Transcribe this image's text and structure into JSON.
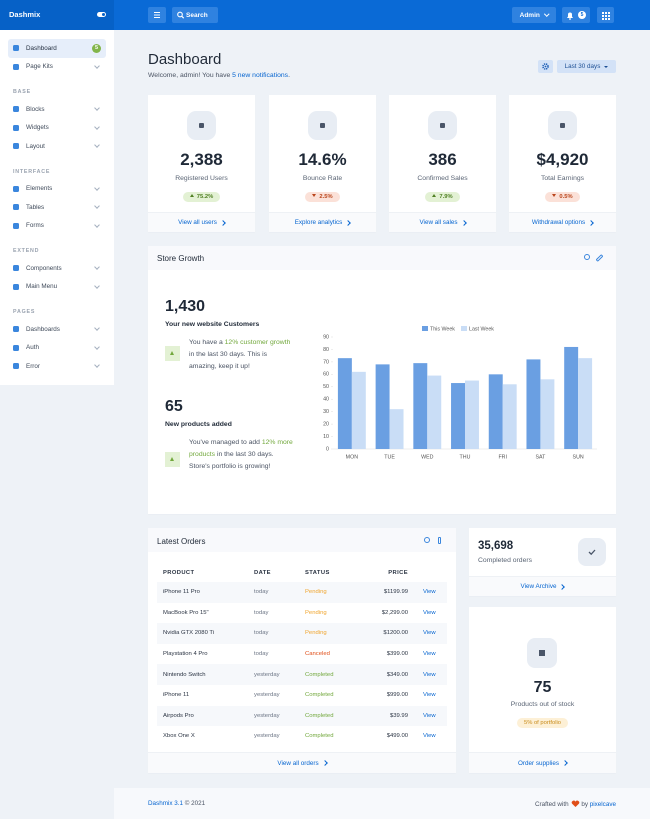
{
  "brand": "Dashmix",
  "header": {
    "search": "Search",
    "user": "Admin",
    "notifications": "5"
  },
  "sidebar": {
    "items": [
      {
        "label": "Dashboard",
        "badge": "5"
      },
      {
        "label": "Page Kits"
      }
    ],
    "sections": [
      {
        "title": "BASE",
        "items": [
          "Blocks",
          "Widgets",
          "Layout"
        ]
      },
      {
        "title": "INTERFACE",
        "items": [
          "Elements",
          "Tables",
          "Forms"
        ]
      },
      {
        "title": "EXTEND",
        "items": [
          "Components",
          "Main Menu"
        ]
      },
      {
        "title": "PAGES",
        "items": [
          "Dashboards",
          "Auth",
          "Error"
        ]
      }
    ]
  },
  "page": {
    "title": "Dashboard",
    "welcome": [
      "Welcome, admin! You have ",
      "5 new notifications",
      "."
    ],
    "range": "Last 30 days"
  },
  "stats": [
    {
      "value": "2,388",
      "label": "Registered Users",
      "change": "75.2%",
      "trend": "up",
      "link": "View all users"
    },
    {
      "value": "14.6%",
      "label": "Bounce Rate",
      "change": "2.5%",
      "trend": "down",
      "link": "Explore analytics"
    },
    {
      "value": "386",
      "label": "Confirmed Sales",
      "change": "7.9%",
      "trend": "up",
      "link": "View all sales"
    },
    {
      "value": "$4,920",
      "label": "Total Earnings",
      "change": "0.5%",
      "trend": "down",
      "link": "Withdrawal options"
    }
  ],
  "store_growth": {
    "title": "Store Growth",
    "highlights": [
      {
        "value": "1,430",
        "label": "Your new website Customers",
        "text": [
          "You have a ",
          "12% customer growth",
          " in the last 30 days. This is amazing, keep it up!"
        ]
      },
      {
        "value": "65",
        "label": "New products added",
        "text": [
          "You've managed to add ",
          "12% more products",
          " in the last 30 days. Store's portfolio is growing!"
        ]
      }
    ]
  },
  "chart_data": {
    "type": "bar",
    "categories": [
      "MON",
      "TUE",
      "WED",
      "THU",
      "FRI",
      "SAT",
      "SUN"
    ],
    "series": [
      {
        "name": "This Week",
        "color": "#6a9fe2",
        "values": [
          73,
          68,
          69,
          53,
          60,
          72,
          82
        ]
      },
      {
        "name": "Last Week",
        "color": "#c9ddf6",
        "values": [
          62,
          32,
          59,
          55,
          52,
          56,
          73
        ]
      }
    ],
    "ylim": [
      0,
      90
    ],
    "yticks": [
      0,
      10,
      20,
      30,
      40,
      50,
      60,
      70,
      80,
      90
    ]
  },
  "orders": {
    "title": "Latest Orders",
    "columns": [
      "PRODUCT",
      "DATE",
      "STATUS",
      "PRICE"
    ],
    "rows": [
      {
        "product": "iPhone 11 Pro",
        "date": "today",
        "status": "Pending",
        "status_color": "#f0a630",
        "price": "$1199.99",
        "action": "View"
      },
      {
        "product": "MacBook Pro 15\"",
        "date": "today",
        "status": "Pending",
        "status_color": "#f0a630",
        "price": "$2,299.00",
        "action": "View"
      },
      {
        "product": "Nvidia GTX 2080 Ti",
        "date": "today",
        "status": "Pending",
        "status_color": "#f0a630",
        "price": "$1200.00",
        "action": "View"
      },
      {
        "product": "Playstation 4 Pro",
        "date": "today",
        "status": "Canceled",
        "status_color": "#e04f1a",
        "price": "$399.00",
        "action": "View"
      },
      {
        "product": "Nintendo Switch",
        "date": "yesterday",
        "status": "Completed",
        "status_color": "#72a83c",
        "price": "$349.00",
        "action": "View"
      },
      {
        "product": "iPhone 11",
        "date": "yesterday",
        "status": "Completed",
        "status_color": "#72a83c",
        "price": "$999.00",
        "action": "View"
      },
      {
        "product": "Airpods Pro",
        "date": "yesterday",
        "status": "Completed",
        "status_color": "#72a83c",
        "price": "$39.99",
        "action": "View"
      },
      {
        "product": "Xbox One X",
        "date": "yesterday",
        "status": "Completed",
        "status_color": "#72a83c",
        "price": "$499.00",
        "action": "View"
      }
    ],
    "link": "View all orders"
  },
  "completed": {
    "value": "35,698",
    "label": "Completed orders",
    "link": "View Archive"
  },
  "stock": {
    "value": "75",
    "label": "Products out of stock",
    "badge": "5% of portfolio",
    "link": "Order supplies"
  },
  "footer": {
    "product": "Dashmix 3.1",
    "copyright": " © 2021",
    "crafted": "Crafted with",
    "by": " by ",
    "author": "pixelcave"
  }
}
